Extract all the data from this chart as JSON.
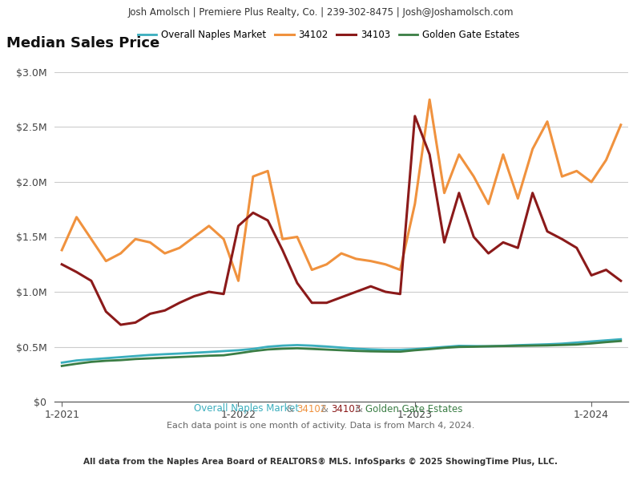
{
  "header_text": "Josh Amolsch | Premiere Plus Realty, Co. | 239-302-8475 | Josh@Joshamolsch.com",
  "title": "Median Sales Price",
  "footer_parts": [
    [
      "Overall Naples Market",
      "#3aaebd"
    ],
    [
      " & ",
      "#888888"
    ],
    [
      "34102",
      "#f0923e"
    ],
    [
      " & ",
      "#888888"
    ],
    [
      "34103",
      "#8b1a1a"
    ],
    [
      " & ",
      "#888888"
    ],
    [
      "Golden Gate Estates",
      "#3a7d44"
    ]
  ],
  "footer_line2": "Each data point is one month of activity. Data is from March 4, 2024.",
  "footer_line3": "All data from the Naples Area Board of REALTORS® MLS. InfoSparks © 2025 ShowingTime Plus, LLC.",
  "colors": {
    "overall": "#3aaebd",
    "zip34102": "#f0923e",
    "zip34103": "#8b1a1a",
    "golden_gate": "#3a7d44"
  },
  "legend_labels": [
    "Overall Naples Market",
    "34102",
    "34103",
    "Golden Gate Estates"
  ],
  "ylim": [
    0,
    3000000
  ],
  "yticks": [
    0,
    500000,
    1000000,
    1500000,
    2000000,
    2500000,
    3000000
  ],
  "xlabels": [
    "1-2021",
    "1-2022",
    "1-2023",
    "1-2024"
  ],
  "xtick_positions": [
    0,
    12,
    24,
    36
  ],
  "overall_naples": [
    355000,
    375000,
    385000,
    395000,
    405000,
    415000,
    425000,
    432000,
    438000,
    445000,
    452000,
    460000,
    468000,
    480000,
    500000,
    510000,
    515000,
    510000,
    502000,
    492000,
    482000,
    476000,
    472000,
    472000,
    478000,
    488000,
    498000,
    508000,
    506000,
    504000,
    508000,
    514000,
    518000,
    522000,
    528000,
    538000,
    548000,
    558000,
    568000
  ],
  "zip34102": [
    1380000,
    1680000,
    1480000,
    1280000,
    1350000,
    1480000,
    1450000,
    1350000,
    1400000,
    1500000,
    1600000,
    1480000,
    1100000,
    2050000,
    2100000,
    1480000,
    1500000,
    1200000,
    1250000,
    1350000,
    1300000,
    1280000,
    1250000,
    1200000,
    1800000,
    2750000,
    1900000,
    2250000,
    2050000,
    1800000,
    2250000,
    1850000,
    2300000,
    2550000,
    2050000,
    2100000,
    2000000,
    2200000,
    2520000
  ],
  "zip34103": [
    1250000,
    1180000,
    1100000,
    820000,
    700000,
    720000,
    800000,
    830000,
    900000,
    960000,
    1000000,
    980000,
    1600000,
    1720000,
    1650000,
    1380000,
    1080000,
    900000,
    900000,
    950000,
    1000000,
    1050000,
    1000000,
    980000,
    2600000,
    2250000,
    1450000,
    1900000,
    1500000,
    1350000,
    1450000,
    1400000,
    1900000,
    1550000,
    1480000,
    1400000,
    1150000,
    1200000,
    1100000
  ],
  "golden_gate": [
    325000,
    345000,
    362000,
    372000,
    378000,
    388000,
    394000,
    400000,
    406000,
    412000,
    418000,
    422000,
    440000,
    460000,
    475000,
    482000,
    486000,
    480000,
    474000,
    468000,
    462000,
    458000,
    456000,
    455000,
    468000,
    478000,
    490000,
    498000,
    500000,
    504000,
    506000,
    508000,
    510000,
    512000,
    516000,
    520000,
    530000,
    542000,
    552000
  ]
}
